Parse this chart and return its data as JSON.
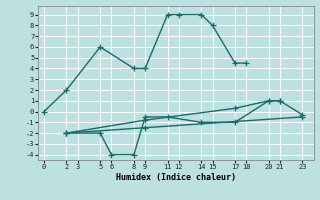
{
  "xlabel": "Humidex (Indice chaleur)",
  "ylabel": "",
  "xlim": [
    -0.5,
    24
  ],
  "ylim": [
    -4.5,
    9.8
  ],
  "xticks": [
    0,
    2,
    3,
    5,
    6,
    8,
    9,
    11,
    12,
    14,
    15,
    17,
    18,
    20,
    21,
    23
  ],
  "yticks": [
    -4,
    -3,
    -2,
    -1,
    0,
    1,
    2,
    3,
    4,
    5,
    6,
    7,
    8,
    9
  ],
  "bg_color": "#bde0e0",
  "grid_color": "#d8f0f0",
  "line_color": "#1a6b6b",
  "series": [
    {
      "x": [
        0,
        2,
        5,
        8,
        9,
        11,
        12,
        14,
        15,
        17,
        18
      ],
      "y": [
        0,
        2,
        6,
        4,
        4,
        9,
        9,
        9,
        8,
        4.5,
        4.5
      ]
    },
    {
      "x": [
        2,
        5,
        6,
        8,
        9,
        11,
        14,
        17,
        20,
        21
      ],
      "y": [
        -2,
        -2,
        -4,
        -4,
        -0.5,
        -0.5,
        -1,
        -1,
        1,
        1
      ]
    },
    {
      "x": [
        2,
        9,
        17,
        20,
        21,
        23
      ],
      "y": [
        -2,
        -0.8,
        0.3,
        1,
        1,
        -0.3
      ]
    },
    {
      "x": [
        2,
        9,
        23
      ],
      "y": [
        -2,
        -1.5,
        -0.5
      ]
    }
  ],
  "marker": "+",
  "markersize": 4,
  "linewidth": 1.0,
  "title_fontsize": 7,
  "xlabel_fontsize": 6,
  "tick_fontsize": 5
}
